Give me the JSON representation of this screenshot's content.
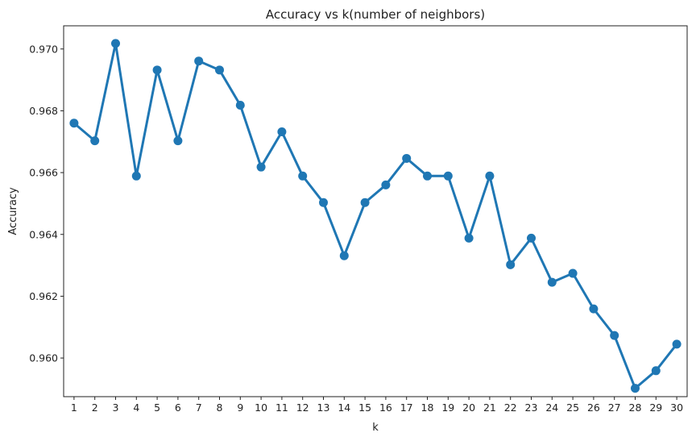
{
  "chart_data": {
    "type": "line",
    "title": "Accuracy vs k(number of neighbors)",
    "xlabel": "k",
    "ylabel": "Accuracy",
    "categories": [
      "1",
      "2",
      "3",
      "4",
      "5",
      "6",
      "7",
      "8",
      "9",
      "10",
      "11",
      "12",
      "13",
      "14",
      "15",
      "16",
      "17",
      "18",
      "19",
      "20",
      "21",
      "22",
      "23",
      "24",
      "25",
      "26",
      "27",
      "28",
      "29",
      "30"
    ],
    "series": [
      {
        "values": [
          0.9676,
          0.96703,
          0.97018,
          0.96589,
          0.96932,
          0.96703,
          0.96961,
          0.96932,
          0.96818,
          0.96618,
          0.96732,
          0.96589,
          0.96503,
          0.96331,
          0.96503,
          0.9656,
          0.96646,
          0.96589,
          0.96589,
          0.96388,
          0.96589,
          0.96302,
          0.96388,
          0.96245,
          0.96274,
          0.96159,
          0.96073,
          0.95902,
          0.95959,
          0.96045
        ],
        "color": "#1f77b4"
      }
    ],
    "yticks": [
      "0.960",
      "0.962",
      "0.964",
      "0.966",
      "0.968",
      "0.970"
    ],
    "ylim": [
      0.95875,
      0.97075
    ],
    "grid": false,
    "marker": "circle"
  }
}
